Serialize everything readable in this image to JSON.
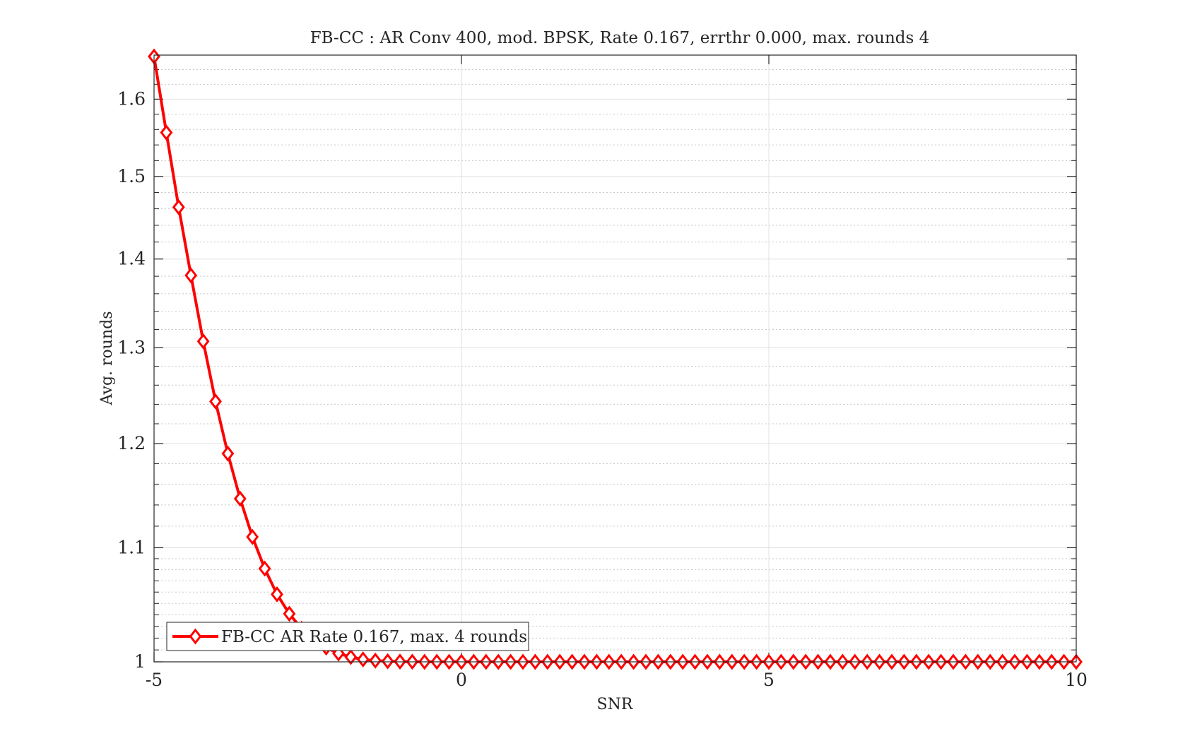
{
  "chart_data": {
    "type": "line",
    "title": "FB-CC : AR Conv 400, mod. BPSK, Rate 0.167, errthr 0.000, max. rounds 4",
    "xlabel": "SNR",
    "ylabel": "Avg. rounds",
    "xlim": [
      -5,
      10
    ],
    "ylim": [
      1,
      1.66
    ],
    "y_scale": "log",
    "xticks": [
      -5,
      0,
      5,
      10
    ],
    "yticks": [
      1,
      1.1,
      1.2,
      1.3,
      1.4,
      1.5,
      1.6
    ],
    "xtick_labels": [
      "-5",
      "0",
      "5",
      "10"
    ],
    "ytick_labels": [
      "1",
      "1.1",
      "1.2",
      "1.3",
      "1.4",
      "1.5",
      "1.6"
    ],
    "grid": true,
    "minor_grid": true,
    "legend_position": "bottom-left",
    "series": [
      {
        "name": "FB-CC AR Rate 0.167, max. 4 rounds",
        "color": "#ff0000",
        "marker": "diamond",
        "x": [
          -5.0,
          -4.8,
          -4.6,
          -4.4,
          -4.2,
          -4.0,
          -3.8,
          -3.6,
          -3.4,
          -3.2,
          -3.0,
          -2.8,
          -2.6,
          -2.4,
          -2.2,
          -2.0,
          -1.8,
          -1.6,
          -1.4,
          -1.2,
          -1.0,
          -0.8,
          -0.6,
          -0.4,
          -0.2,
          0.0,
          0.2,
          0.4,
          0.6,
          0.8,
          1.0,
          1.2,
          1.4,
          1.6,
          1.8,
          2.0,
          2.2,
          2.4,
          2.6,
          2.8,
          3.0,
          3.2,
          3.4,
          3.6,
          3.8,
          4.0,
          4.2,
          4.4,
          4.6,
          4.8,
          5.0,
          5.2,
          5.4,
          5.6,
          5.8,
          6.0,
          6.2,
          6.4,
          6.6,
          6.8,
          7.0,
          7.2,
          7.4,
          7.6,
          7.8,
          8.0,
          8.2,
          8.4,
          8.6,
          8.8,
          9.0,
          9.2,
          9.4,
          9.6,
          9.8,
          10.0
        ],
        "y": [
          1.658,
          1.556,
          1.462,
          1.381,
          1.307,
          1.243,
          1.19,
          1.146,
          1.11,
          1.081,
          1.058,
          1.041,
          1.028,
          1.019,
          1.012,
          1.007,
          1.004,
          1.002,
          1.001,
          1.0005,
          1.0002,
          1.0001,
          1.0,
          1.0,
          1.0,
          1.0,
          1.0,
          1.0,
          1.0,
          1.0,
          1.0,
          1.0,
          1.0,
          1.0,
          1.0,
          1.0,
          1.0,
          1.0,
          1.0,
          1.0,
          1.0,
          1.0,
          1.0,
          1.0,
          1.0,
          1.0,
          1.0,
          1.0,
          1.0,
          1.0,
          1.0,
          1.0,
          1.0,
          1.0,
          1.0,
          1.0,
          1.0,
          1.0,
          1.0,
          1.0,
          1.0,
          1.0,
          1.0,
          1.0,
          1.0,
          1.0,
          1.0,
          1.0,
          1.0,
          1.0,
          1.0,
          1.0,
          1.0,
          1.0,
          1.0,
          1.0
        ]
      }
    ]
  }
}
